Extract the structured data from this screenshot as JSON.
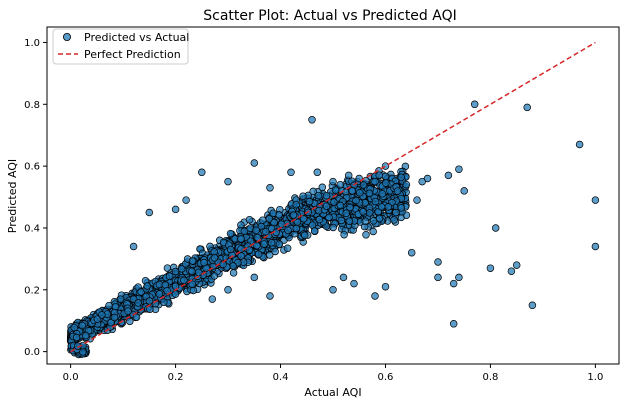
{
  "chart_data": {
    "type": "scatter",
    "title": "Scatter Plot: Actual vs Predicted AQI",
    "xlabel": "Actual AQI",
    "ylabel": "Predicted AQI",
    "xlim": [
      -0.045,
      1.045
    ],
    "ylim": [
      -0.04,
      1.05
    ],
    "xticks": [
      "0.0",
      "0.2",
      "0.4",
      "0.6",
      "0.8",
      "1.0"
    ],
    "yticks": [
      "0.0",
      "0.2",
      "0.4",
      "0.6",
      "0.8",
      "1.0"
    ],
    "grid": false,
    "legend_position": "top-left",
    "series": [
      {
        "name": "Predicted vs Actual",
        "kind": "scatter",
        "color": "#1f77b4",
        "edge_color": "#000000",
        "points": [
          [
            0.46,
            0.75
          ],
          [
            0.77,
            0.8
          ],
          [
            0.87,
            0.79
          ],
          [
            0.97,
            0.67
          ],
          [
            1.0,
            0.49
          ],
          [
            1.0,
            0.34
          ],
          [
            0.88,
            0.15
          ],
          [
            0.85,
            0.28
          ],
          [
            0.84,
            0.26
          ],
          [
            0.8,
            0.27
          ],
          [
            0.81,
            0.4
          ],
          [
            0.74,
            0.24
          ],
          [
            0.73,
            0.22
          ],
          [
            0.73,
            0.09
          ],
          [
            0.7,
            0.24
          ],
          [
            0.7,
            0.29
          ],
          [
            0.65,
            0.32
          ],
          [
            0.75,
            0.52
          ],
          [
            0.74,
            0.59
          ],
          [
            0.72,
            0.57
          ],
          [
            0.68,
            0.56
          ],
          [
            0.67,
            0.55
          ],
          [
            0.6,
            0.6
          ],
          [
            0.58,
            0.55
          ],
          [
            0.55,
            0.56
          ],
          [
            0.53,
            0.57
          ],
          [
            0.5,
            0.55
          ],
          [
            0.47,
            0.58
          ],
          [
            0.5,
            0.2
          ],
          [
            0.54,
            0.22
          ],
          [
            0.52,
            0.24
          ],
          [
            0.58,
            0.18
          ],
          [
            0.6,
            0.21
          ],
          [
            0.42,
            0.58
          ],
          [
            0.35,
            0.61
          ],
          [
            0.25,
            0.58
          ],
          [
            0.3,
            0.55
          ],
          [
            0.38,
            0.53
          ],
          [
            0.2,
            0.46
          ],
          [
            0.15,
            0.45
          ],
          [
            0.22,
            0.49
          ],
          [
            0.12,
            0.34
          ],
          [
            0.3,
            0.2
          ],
          [
            0.35,
            0.24
          ],
          [
            0.38,
            0.18
          ],
          [
            0.27,
            0.17
          ],
          [
            0.62,
            0.45
          ],
          [
            0.66,
            0.49
          ]
        ]
      },
      {
        "name": "Perfect Prediction",
        "kind": "line",
        "color": "#d62728",
        "x": [
          0,
          1
        ],
        "y": [
          0,
          1
        ]
      }
    ]
  }
}
